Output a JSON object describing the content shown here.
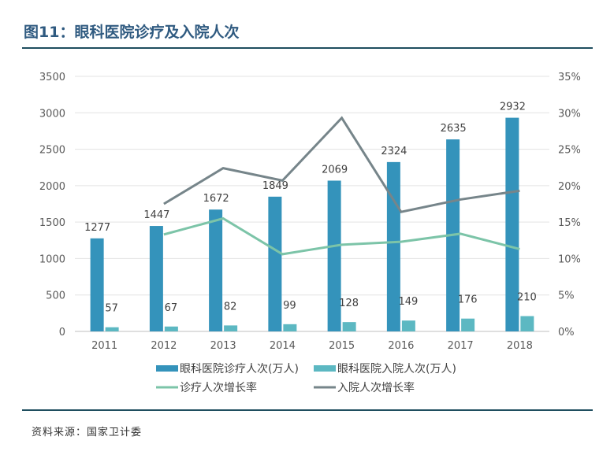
{
  "title": "图11：眼科医院诊疗及入院人次",
  "source": "资料来源：国家卫计委",
  "chart_data": {
    "type": "bar+line",
    "categories": [
      "2011",
      "2012",
      "2013",
      "2014",
      "2015",
      "2016",
      "2017",
      "2018"
    ],
    "y_left": {
      "range": [
        0,
        3500
      ],
      "ticks": [
        "0",
        "500",
        "1000",
        "1500",
        "2000",
        "2500",
        "3000",
        "3500"
      ]
    },
    "y_right": {
      "range": [
        0,
        35
      ],
      "ticks": [
        "0%",
        "5%",
        "10%",
        "15%",
        "20%",
        "25%",
        "30%",
        "35%"
      ]
    },
    "grid": true,
    "legend_position": "bottom",
    "series": [
      {
        "name": "眼科医院诊疗人次(万人)",
        "type": "bar",
        "axis": "left",
        "color": "#3493bb",
        "values": [
          1277,
          1447,
          1672,
          1849,
          2069,
          2324,
          2635,
          2932
        ]
      },
      {
        "name": "眼科医院入院人次(万人)",
        "type": "bar",
        "axis": "left",
        "color": "#5cb8c2",
        "values": [
          57,
          67,
          82,
          99,
          128,
          149,
          176,
          210
        ]
      },
      {
        "name": "诊疗人次增长率",
        "type": "line",
        "axis": "right",
        "color": "#7cc4a8",
        "values": [
          null,
          13.3,
          15.5,
          10.6,
          11.9,
          12.3,
          13.4,
          11.3
        ]
      },
      {
        "name": "入院人次增长率",
        "type": "line",
        "axis": "right",
        "color": "#76858a",
        "values": [
          null,
          17.5,
          22.4,
          20.7,
          29.3,
          16.4,
          18.1,
          19.3
        ]
      }
    ]
  }
}
